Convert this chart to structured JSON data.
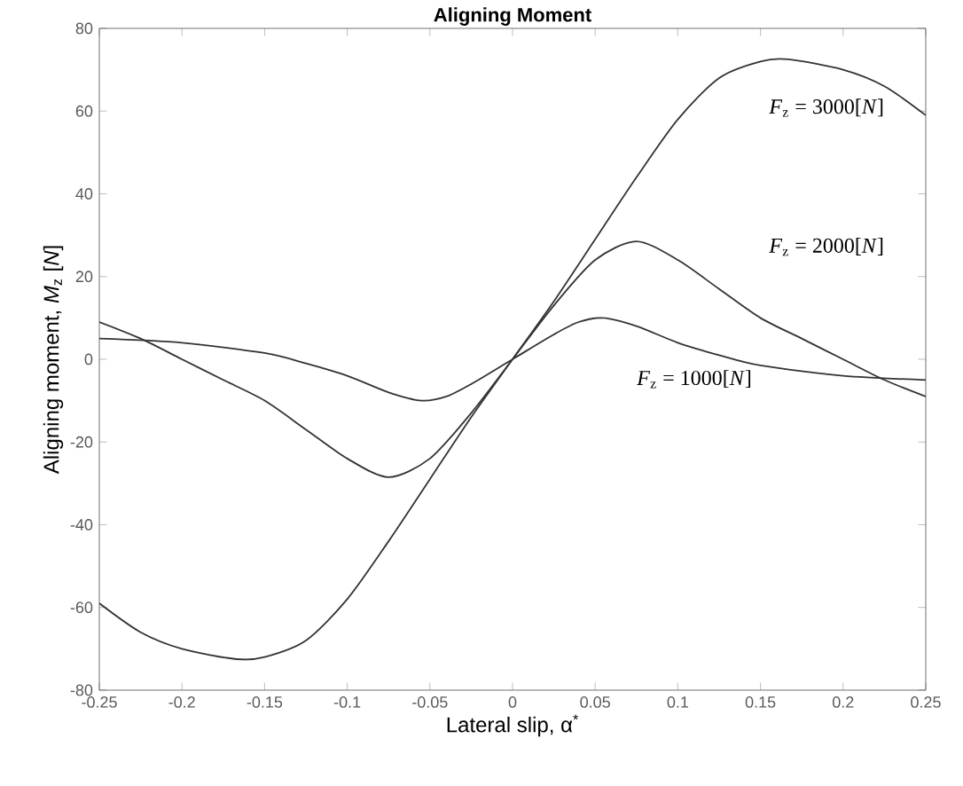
{
  "chart_data": {
    "type": "line",
    "title": "Aligning Moment",
    "xlabel": "Lateral slip, α$^{*}$",
    "ylabel": "Aligning moment, *M*$_{z}$ [*N*]",
    "xlim": [
      -0.25,
      0.25
    ],
    "ylim": [
      -80,
      80
    ],
    "xticks": [
      -0.25,
      -0.2,
      -0.15,
      -0.1,
      -0.05,
      0,
      0.05,
      0.1,
      0.15,
      0.2,
      0.25
    ],
    "yticks": [
      -80,
      -60,
      -40,
      -20,
      0,
      20,
      40,
      60,
      80
    ],
    "grid": false,
    "marker": "none",
    "line_style": "solid",
    "series": [
      {
        "color": "#333333",
        "x": [
          -0.25,
          -0.225,
          -0.2,
          -0.167,
          -0.15,
          -0.125,
          -0.1,
          -0.075,
          -0.05,
          -0.025,
          0,
          0.025,
          0.05,
          0.075,
          0.1,
          0.125,
          0.15,
          0.167,
          0.2,
          0.225,
          0.25
        ],
        "values": [
          -59,
          -66,
          -70,
          -72.5,
          -72,
          -68,
          -58,
          -44,
          -29,
          -14,
          0,
          14,
          29,
          44,
          58,
          68,
          72,
          72.5,
          70,
          66,
          59
        ]
      },
      {
        "color": "#333333",
        "x": [
          -0.25,
          -0.225,
          -0.2,
          -0.175,
          -0.15,
          -0.125,
          -0.1,
          -0.075,
          -0.05,
          -0.025,
          0,
          0.025,
          0.05,
          0.075,
          0.1,
          0.125,
          0.15,
          0.175,
          0.2,
          0.225,
          0.25
        ],
        "values": [
          9,
          5,
          0,
          -5,
          -10,
          -17,
          -24,
          -28.5,
          -24,
          -13,
          0,
          13,
          24,
          28.5,
          24,
          17,
          10,
          5,
          0,
          -5,
          -9
        ]
      },
      {
        "color": "#333333",
        "x": [
          -0.25,
          -0.2,
          -0.15,
          -0.125,
          -0.1,
          -0.075,
          -0.055,
          -0.04,
          -0.025,
          0,
          0.025,
          0.04,
          0.055,
          0.075,
          0.1,
          0.125,
          0.15,
          0.2,
          0.25
        ],
        "values": [
          5,
          4,
          1.5,
          -1,
          -4,
          -8,
          -10,
          -9,
          -6,
          0,
          6,
          9,
          10,
          8,
          4,
          1,
          -1.5,
          -4,
          -5
        ]
      }
    ],
    "annotations": [
      "*F*$_{z}$ = 3000[*N*]",
      "*F*$_{z}$ = 2000[*N*]",
      "*F*$_{z}$ = 1000[*N*]"
    ]
  }
}
